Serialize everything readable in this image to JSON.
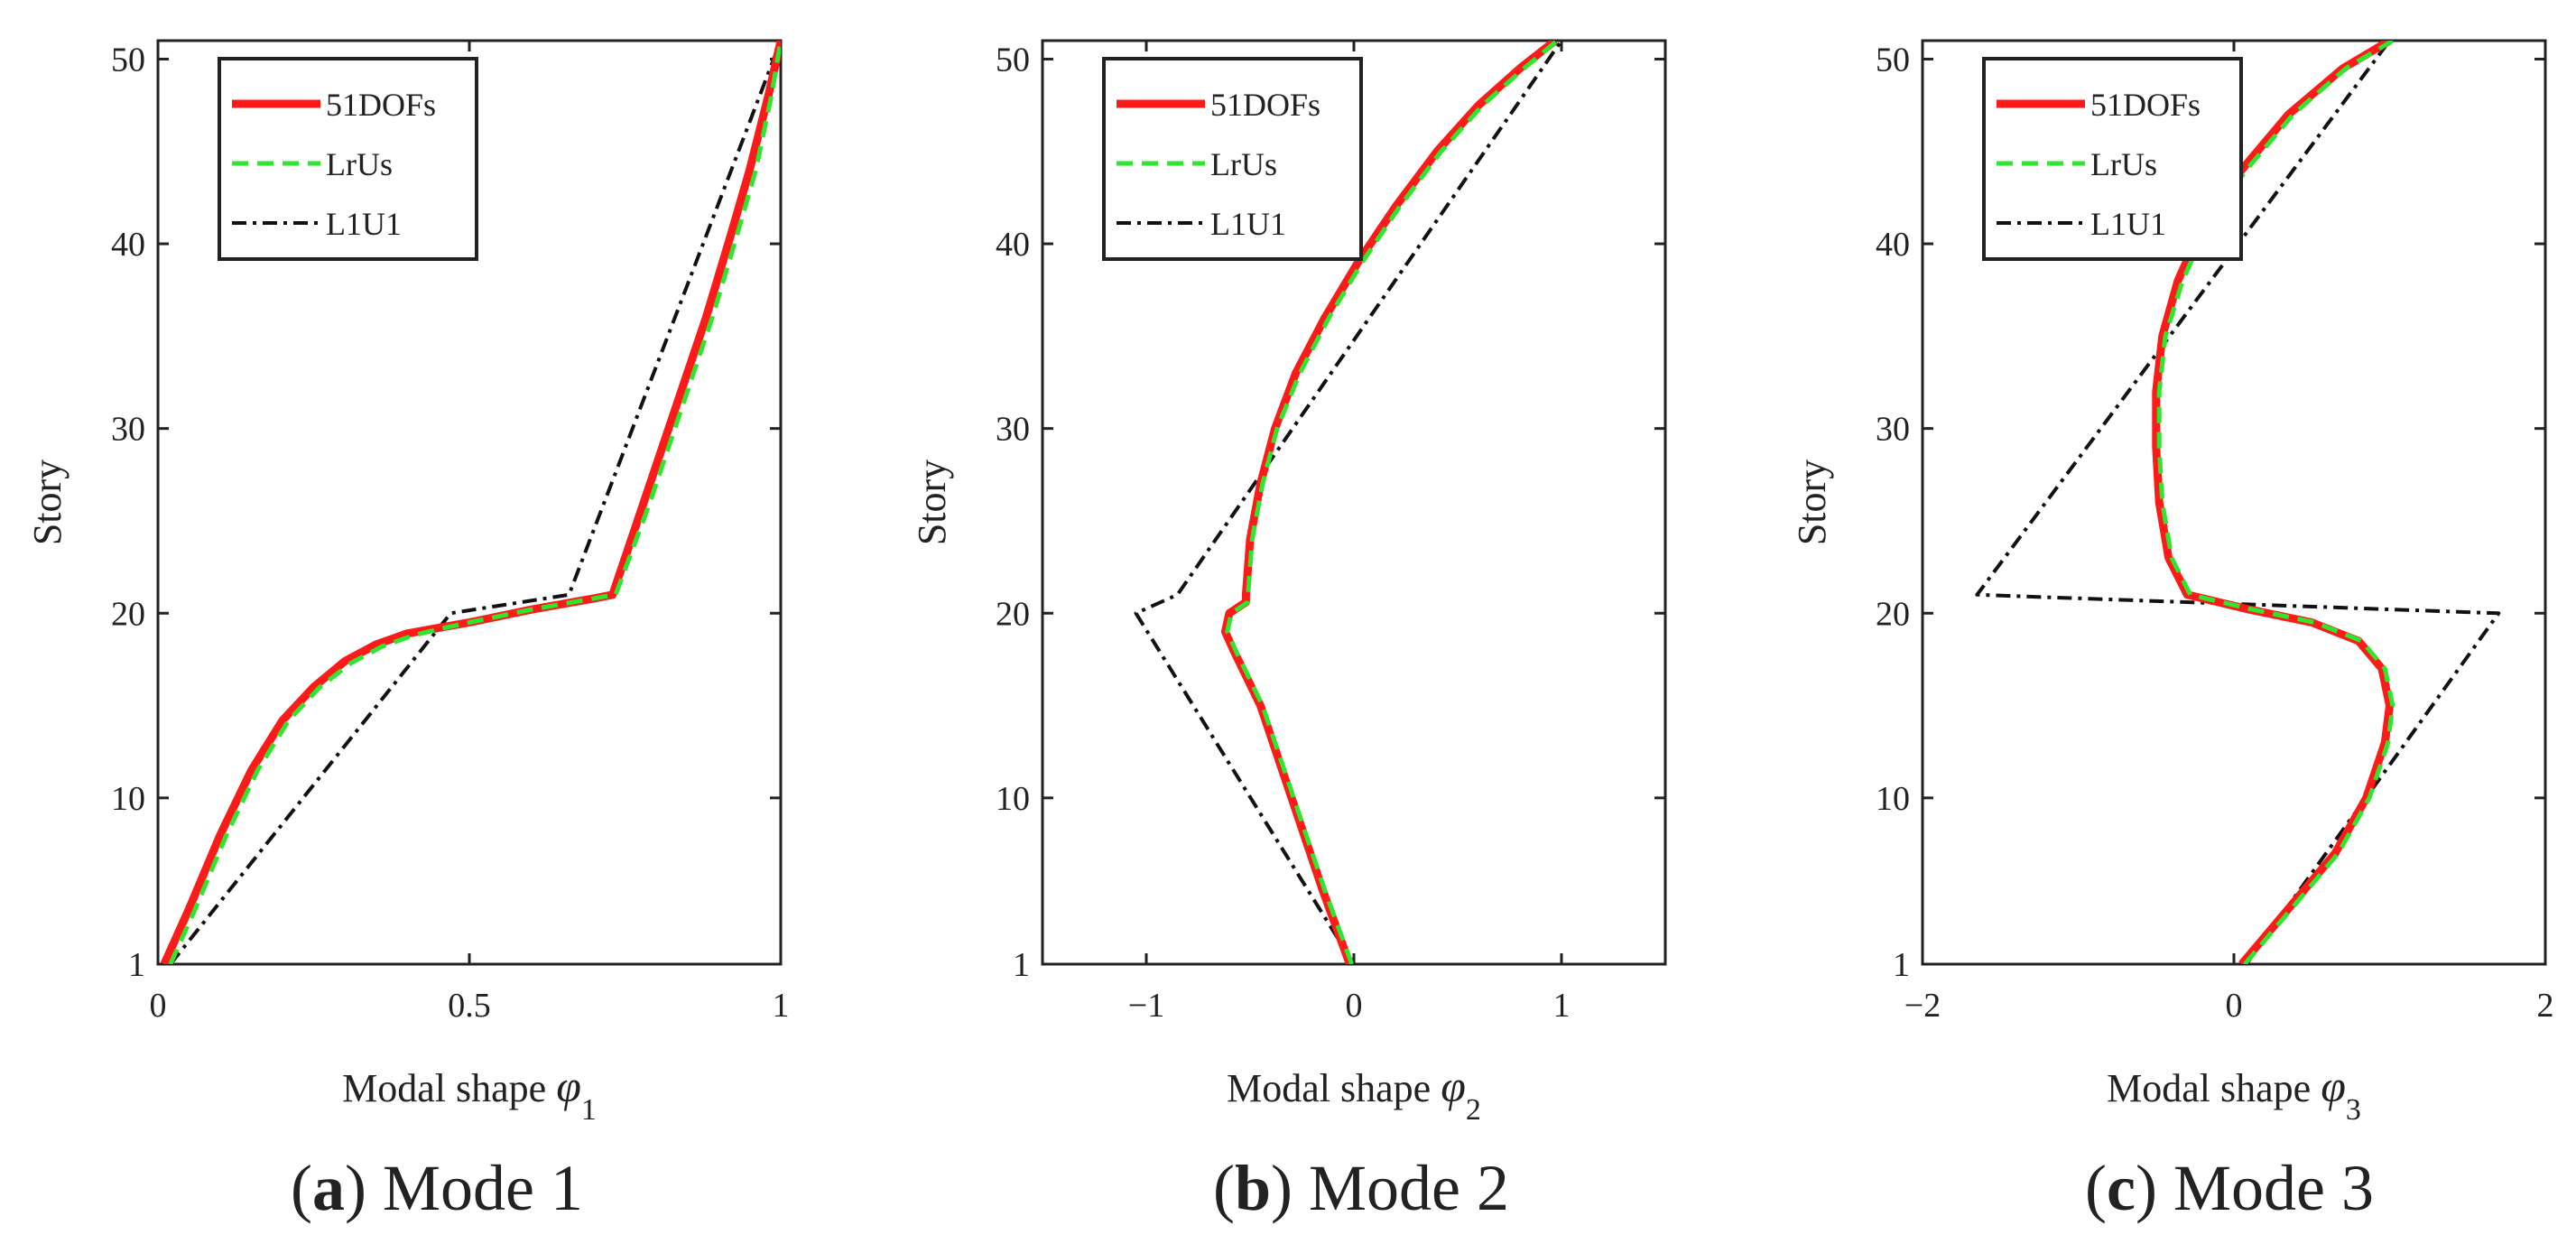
{
  "figure": {
    "panels": [
      {
        "caption_open": "(",
        "caption_letter": "a",
        "caption_close": ") ",
        "caption_text": "Mode 1"
      },
      {
        "caption_open": "(",
        "caption_letter": "b",
        "caption_close": ") ",
        "caption_text": "Mode 2"
      },
      {
        "caption_open": "(",
        "caption_letter": "c",
        "caption_close": ") ",
        "caption_text": "Mode 3"
      }
    ]
  },
  "colors": {
    "dofs": "#ff1a1a",
    "lrus": "#2ee62e",
    "l1u1": "#111111",
    "axis": "#222222"
  },
  "chart_data": [
    {
      "type": "line",
      "title": "(a) Mode 1",
      "xlabel": "Modal shape",
      "xsymbol": "φ",
      "xsub": "1",
      "ylabel": "Story",
      "xlim": [
        0,
        1
      ],
      "ylim": [
        1,
        51
      ],
      "xticks": [
        0,
        0.5,
        1
      ],
      "xtick_labels": [
        "0",
        "0.5",
        "1"
      ],
      "yticks": [
        1,
        10,
        20,
        30,
        40,
        50
      ],
      "ytick_labels": [
        "1",
        "10",
        "20",
        "30",
        "40",
        "50"
      ],
      "legend_position": "top-left",
      "series": [
        {
          "name": "51DOFs",
          "style": "solid",
          "points": [
            [
              0.01,
              1
            ],
            [
              0.05,
              4
            ],
            [
              0.1,
              8
            ],
            [
              0.15,
              11.5
            ],
            [
              0.2,
              14.2
            ],
            [
              0.25,
              16
            ],
            [
              0.3,
              17.4
            ],
            [
              0.35,
              18.3
            ],
            [
              0.4,
              18.9
            ],
            [
              0.45,
              19.2
            ],
            [
              0.5,
              19.5
            ],
            [
              0.6,
              20.2
            ],
            [
              0.7,
              20.8
            ],
            [
              0.73,
              21
            ],
            [
              0.78,
              26
            ],
            [
              0.83,
              31
            ],
            [
              0.88,
              36
            ],
            [
              0.92,
              40.5
            ],
            [
              0.95,
              44
            ],
            [
              0.98,
              48
            ],
            [
              1.0,
              51
            ]
          ]
        },
        {
          "name": "LrUs",
          "style": "dashed",
          "points": [
            [
              0.02,
              1
            ],
            [
              0.06,
              4
            ],
            [
              0.11,
              8
            ],
            [
              0.16,
              11.5
            ],
            [
              0.21,
              14.2
            ],
            [
              0.26,
              16
            ],
            [
              0.31,
              17.3
            ],
            [
              0.36,
              18.2
            ],
            [
              0.41,
              18.8
            ],
            [
              0.46,
              19.2
            ],
            [
              0.5,
              19.5
            ],
            [
              0.6,
              20.2
            ],
            [
              0.7,
              20.8
            ],
            [
              0.735,
              21
            ],
            [
              0.79,
              26
            ],
            [
              0.84,
              31
            ],
            [
              0.89,
              36
            ],
            [
              0.93,
              40.5
            ],
            [
              0.96,
              44
            ],
            [
              0.985,
              48
            ],
            [
              1.0,
              51
            ]
          ]
        },
        {
          "name": "L1U1",
          "style": "dashdot",
          "points": [
            [
              0.02,
              1
            ],
            [
              0.47,
              20
            ],
            [
              0.66,
              21
            ],
            [
              1.0,
              51
            ]
          ]
        }
      ]
    },
    {
      "type": "line",
      "title": "(b) Mode 2",
      "xlabel": "Modal shape",
      "xsymbol": "φ",
      "xsub": "2",
      "ylabel": "Story",
      "xlim": [
        -1.5,
        1.5
      ],
      "ylim": [
        1,
        51
      ],
      "xticks": [
        -1,
        0,
        1
      ],
      "xtick_labels": [
        "−1",
        "0",
        "1"
      ],
      "yticks": [
        1,
        10,
        20,
        30,
        40,
        50
      ],
      "ytick_labels": [
        "1",
        "10",
        "20",
        "30",
        "40",
        "50"
      ],
      "legend_position": "top-left",
      "series": [
        {
          "name": "51DOFs",
          "style": "solid",
          "points": [
            [
              -0.02,
              1
            ],
            [
              -0.15,
              5
            ],
            [
              -0.3,
              10
            ],
            [
              -0.45,
              15
            ],
            [
              -0.58,
              18
            ],
            [
              -0.62,
              19
            ],
            [
              -0.6,
              20
            ],
            [
              -0.52,
              20.6
            ],
            [
              -0.52,
              21
            ],
            [
              -0.5,
              24
            ],
            [
              -0.45,
              27
            ],
            [
              -0.38,
              30
            ],
            [
              -0.28,
              33
            ],
            [
              -0.14,
              36
            ],
            [
              0.02,
              39
            ],
            [
              0.2,
              42
            ],
            [
              0.4,
              45
            ],
            [
              0.6,
              47.5
            ],
            [
              0.8,
              49.5
            ],
            [
              0.97,
              51
            ]
          ]
        },
        {
          "name": "LrUs",
          "style": "dashed",
          "points": [
            [
              -0.01,
              1
            ],
            [
              -0.14,
              5
            ],
            [
              -0.29,
              10
            ],
            [
              -0.44,
              15
            ],
            [
              -0.57,
              18
            ],
            [
              -0.61,
              19
            ],
            [
              -0.59,
              20
            ],
            [
              -0.51,
              20.6
            ],
            [
              -0.51,
              21
            ],
            [
              -0.49,
              24
            ],
            [
              -0.44,
              27
            ],
            [
              -0.37,
              30
            ],
            [
              -0.26,
              33
            ],
            [
              -0.12,
              36
            ],
            [
              0.04,
              39
            ],
            [
              0.22,
              42
            ],
            [
              0.42,
              45
            ],
            [
              0.62,
              47.5
            ],
            [
              0.82,
              49.5
            ],
            [
              0.98,
              51
            ]
          ]
        },
        {
          "name": "L1U1",
          "style": "dashdot",
          "points": [
            [
              0.0,
              1
            ],
            [
              -1.05,
              20
            ],
            [
              -0.85,
              21
            ],
            [
              1.0,
              51
            ]
          ]
        }
      ]
    },
    {
      "type": "line",
      "title": "(c) Mode 3",
      "xlabel": "Modal shape",
      "xsymbol": "φ",
      "xsub": "3",
      "ylabel": "Story",
      "xlim": [
        -2,
        2
      ],
      "ylim": [
        1,
        51
      ],
      "xticks": [
        -2,
        0,
        2
      ],
      "xtick_labels": [
        "−2",
        "0",
        "2"
      ],
      "yticks": [
        1,
        10,
        20,
        30,
        40,
        50
      ],
      "ytick_labels": [
        "1",
        "10",
        "20",
        "30",
        "40",
        "50"
      ],
      "legend_position": "top-left",
      "series": [
        {
          "name": "51DOFs",
          "style": "solid",
          "points": [
            [
              0.05,
              1
            ],
            [
              0.35,
              4
            ],
            [
              0.65,
              7
            ],
            [
              0.85,
              10
            ],
            [
              0.97,
              13
            ],
            [
              1.0,
              15
            ],
            [
              0.95,
              17
            ],
            [
              0.8,
              18.5
            ],
            [
              0.5,
              19.5
            ],
            [
              0.1,
              20.2
            ],
            [
              -0.3,
              21
            ],
            [
              -0.42,
              23
            ],
            [
              -0.48,
              26
            ],
            [
              -0.5,
              29
            ],
            [
              -0.5,
              32
            ],
            [
              -0.46,
              35
            ],
            [
              -0.36,
              38
            ],
            [
              -0.2,
              41
            ],
            [
              0.05,
              44
            ],
            [
              0.35,
              47
            ],
            [
              0.7,
              49.5
            ],
            [
              1.0,
              51
            ]
          ]
        },
        {
          "name": "LrUs",
          "style": "dashed",
          "points": [
            [
              0.07,
              1
            ],
            [
              0.37,
              4
            ],
            [
              0.67,
              7
            ],
            [
              0.87,
              10
            ],
            [
              0.99,
              13
            ],
            [
              1.02,
              15
            ],
            [
              0.97,
              17
            ],
            [
              0.82,
              18.5
            ],
            [
              0.52,
              19.5
            ],
            [
              0.12,
              20.2
            ],
            [
              -0.28,
              21
            ],
            [
              -0.4,
              23
            ],
            [
              -0.46,
              26
            ],
            [
              -0.48,
              29
            ],
            [
              -0.48,
              32
            ],
            [
              -0.44,
              35
            ],
            [
              -0.33,
              38
            ],
            [
              -0.17,
              41
            ],
            [
              0.08,
              44
            ],
            [
              0.38,
              47
            ],
            [
              0.72,
              49.5
            ],
            [
              1.02,
              51
            ]
          ]
        },
        {
          "name": "L1U1",
          "style": "dashdot",
          "points": [
            [
              0.08,
              1
            ],
            [
              1.7,
              20
            ],
            [
              -1.65,
              21
            ],
            [
              1.0,
              51
            ]
          ]
        }
      ]
    }
  ]
}
